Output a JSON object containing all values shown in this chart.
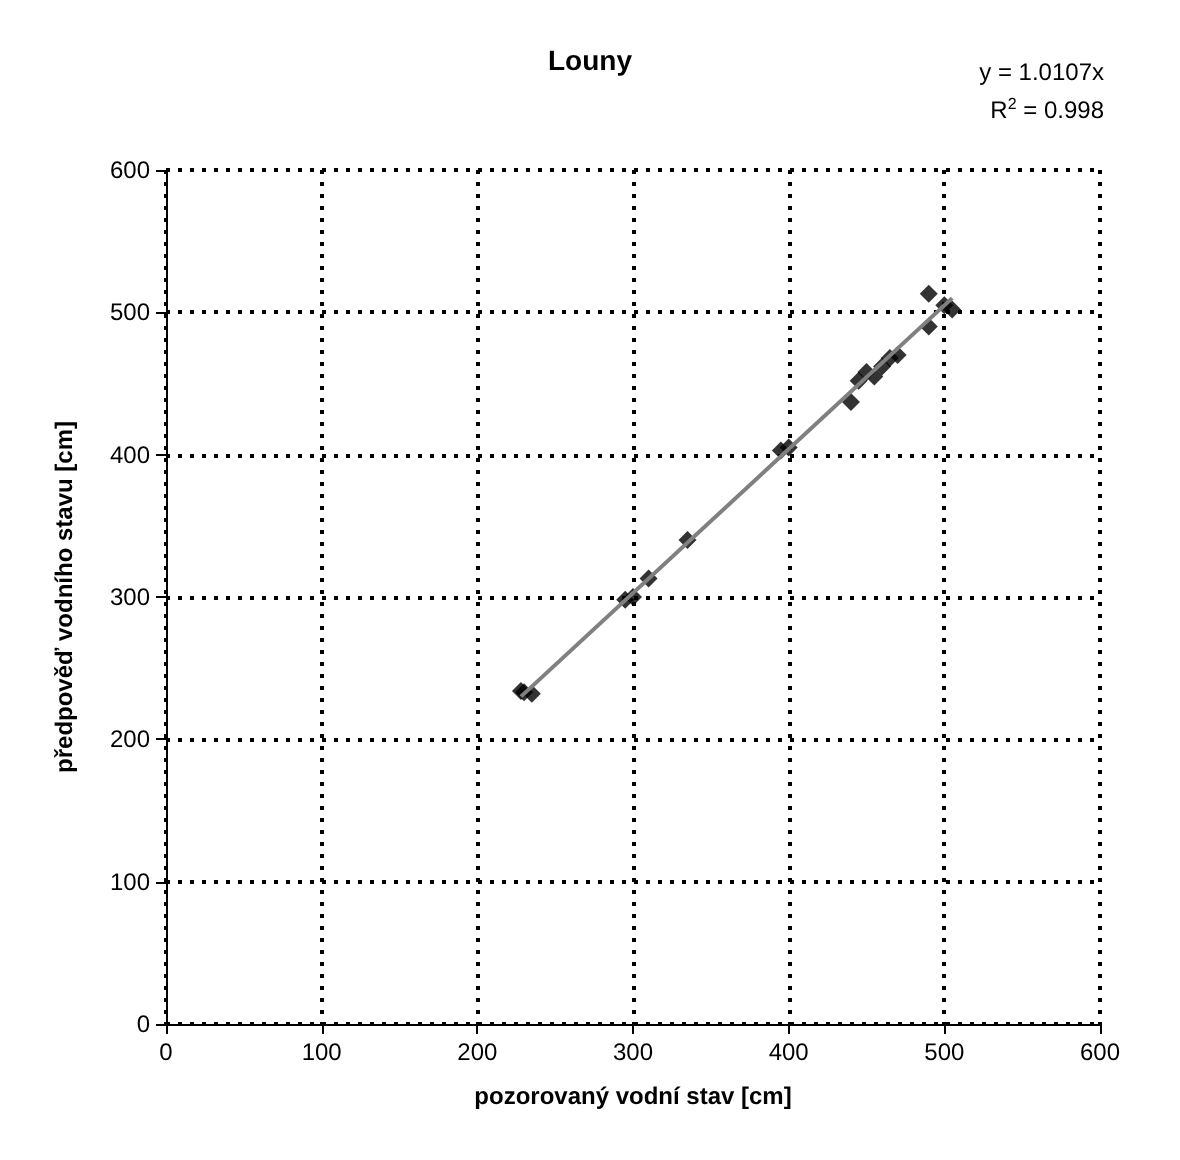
{
  "chart_data": {
    "type": "scatter",
    "title": "Louny",
    "xlabel": "pozorovaný vodní stav [cm]",
    "ylabel": "předpověď vodního stavu [cm]",
    "annotations": [
      "y = 1.0107x",
      "R$^{2}$ = 0.998"
    ],
    "series": [
      {
        "color": "#000000",
        "marker": "diamond",
        "x": [
          228,
          230,
          235,
          295,
          300,
          310,
          335,
          395,
          400,
          440,
          445,
          450,
          455,
          460,
          465,
          470,
          490,
          490,
          500,
          505
        ],
        "values": [
          234,
          233,
          232,
          298,
          300,
          313,
          340,
          403,
          405,
          437,
          452,
          458,
          455,
          462,
          468,
          470,
          513,
          490,
          505,
          502
        ]
      },
      {
        "type": "line",
        "color": "#808080",
        "marker": "none",
        "line_style": "solid",
        "x": [
          228,
          505
        ],
        "values": [
          230,
          510
        ]
      }
    ],
    "xlim": [
      0,
      600
    ],
    "ylim": [
      0,
      600
    ],
    "xticks": [
      0,
      100,
      200,
      300,
      400,
      500,
      600
    ],
    "yticks": [
      0,
      100,
      200,
      300,
      400,
      500,
      600
    ],
    "grid": true
  }
}
